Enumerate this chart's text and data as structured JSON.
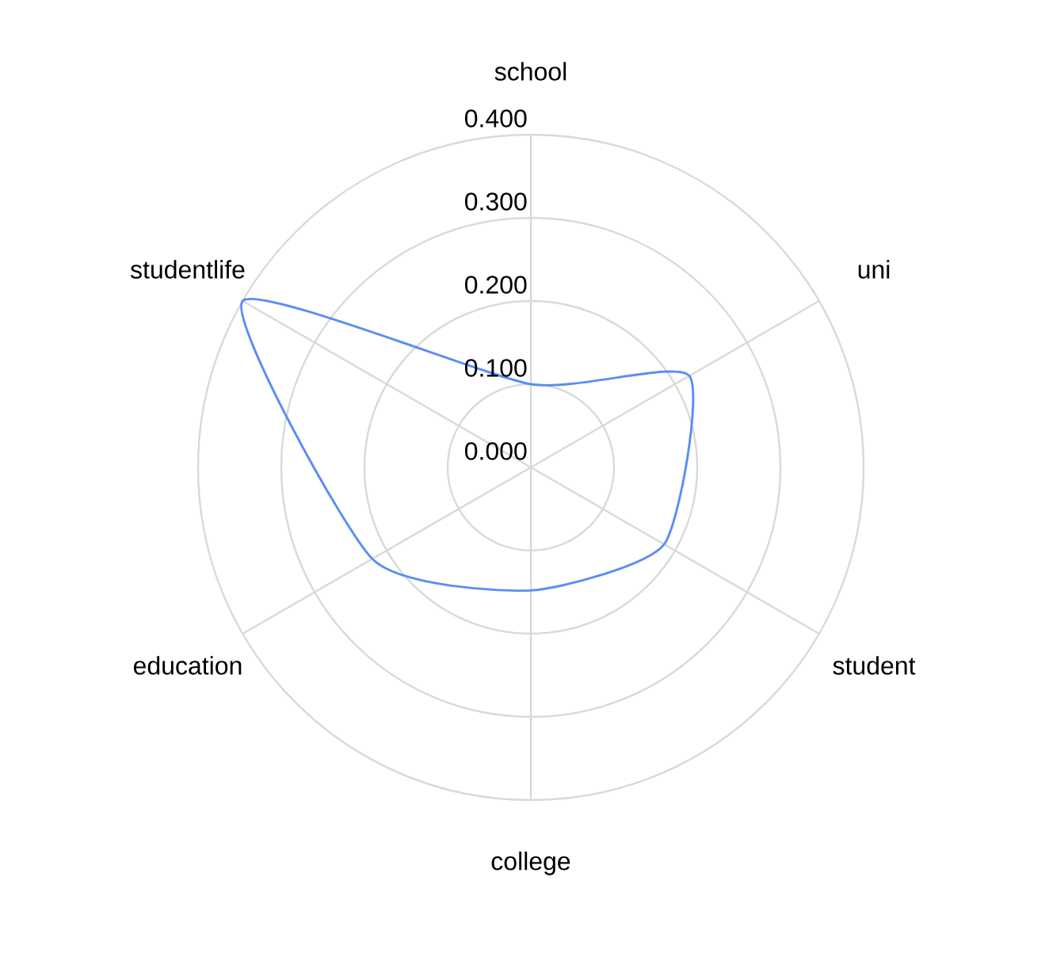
{
  "chart_data": {
    "type": "radar",
    "categories": [
      "school",
      "uni",
      "student",
      "college",
      "education",
      "studentlife"
    ],
    "series": [
      {
        "color": "#5a8ef5",
        "values": [
          0.1,
          0.22,
          0.185,
          0.148,
          0.22,
          0.4
        ]
      }
    ],
    "ylim": [
      0,
      0.4
    ],
    "yticks": [
      {
        "value": 0,
        "label": "0.000"
      },
      {
        "value": 0.1,
        "label": "0.100"
      },
      {
        "value": 0.2,
        "label": "0.200"
      },
      {
        "value": 0.3,
        "label": "0.300"
      },
      {
        "value": 0.4,
        "label": "0.400"
      }
    ],
    "grid": true
  }
}
